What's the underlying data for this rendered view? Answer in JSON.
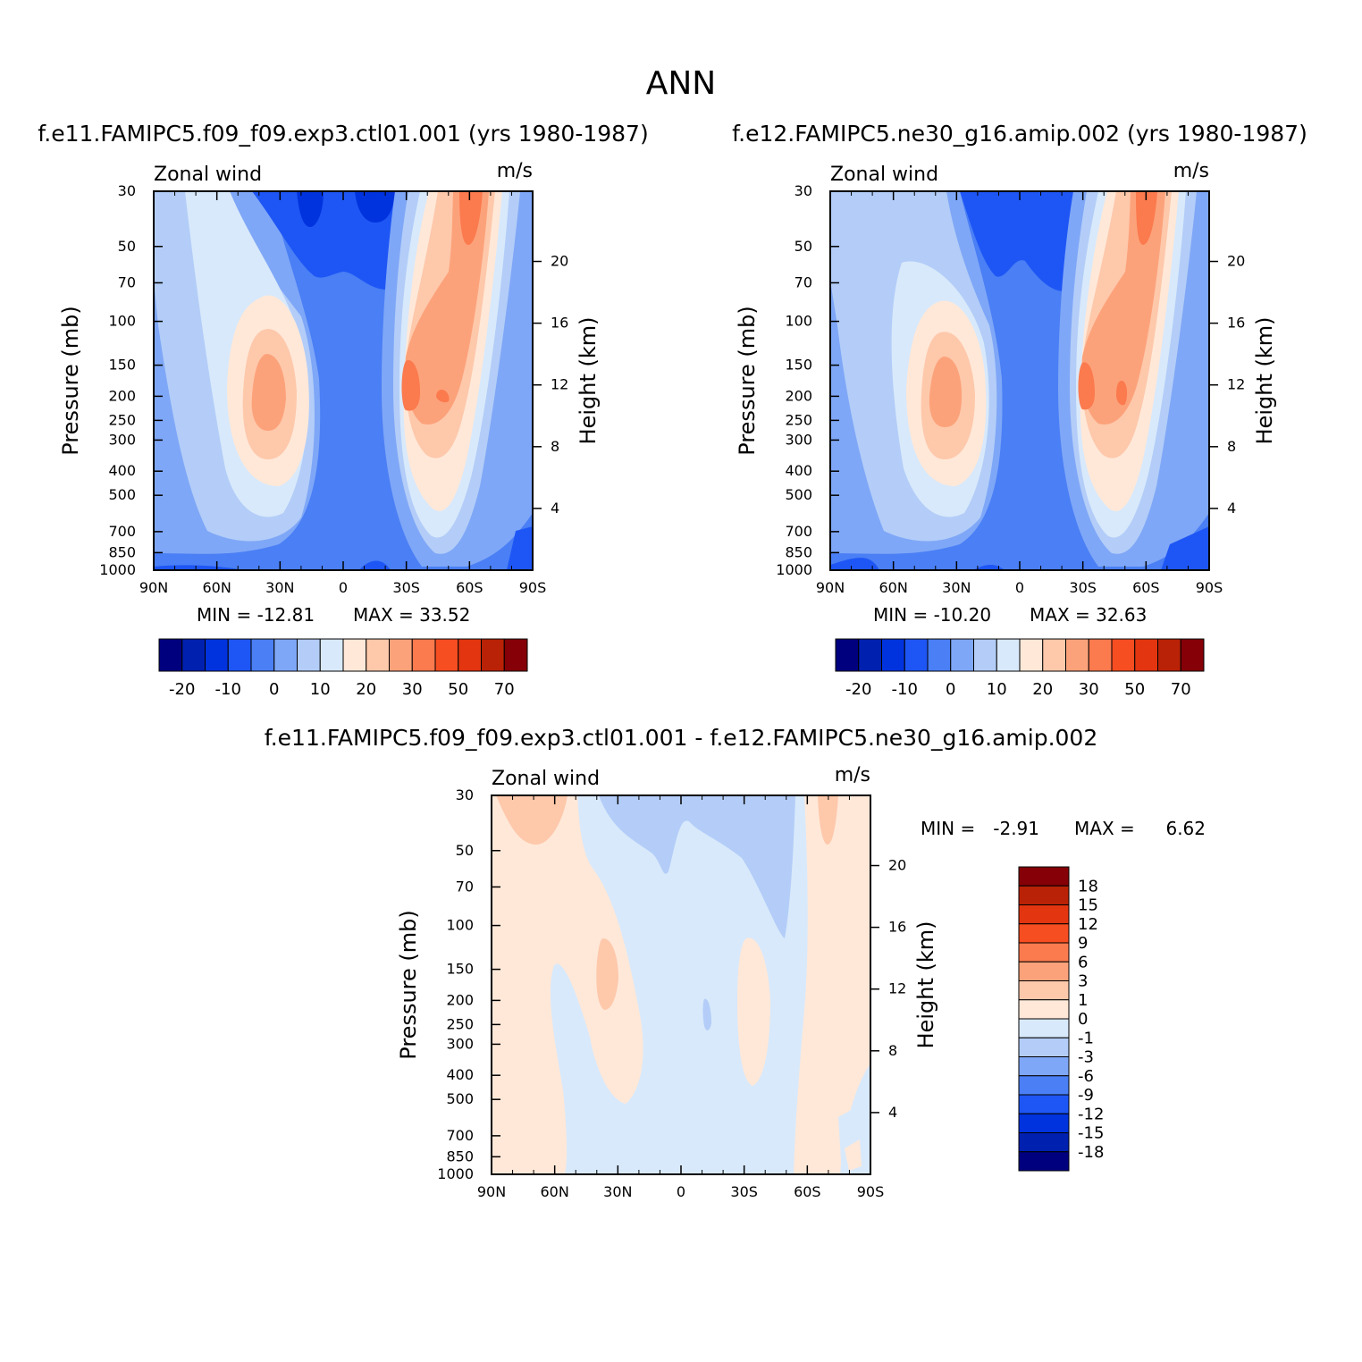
{
  "title": "ANN",
  "colors": {
    "scale": [
      "#00007f",
      "#0020b0",
      "#0033dd",
      "#1e56f5",
      "#4a7ff5",
      "#7fa7f7",
      "#b3cdf8",
      "#d8e9fb",
      "#ffe8d8",
      "#fec8ab",
      "#fca27a",
      "#fb7a4e",
      "#f64d21",
      "#e23510",
      "#b92206",
      "#850007"
    ]
  },
  "chart_data": [
    {
      "type": "contour",
      "title": "f.e11.FAMIPC5.f09_f09.exp3.ctl01.001 (yrs 1980-1987)",
      "variable_label": "Zonal wind",
      "units_label": "m/s",
      "ylabel": "Pressure (mb)",
      "y2label": "Height (km)",
      "x_ticks": [
        "90N",
        "60N",
        "30N",
        "0",
        "30S",
        "60S",
        "90S"
      ],
      "y_ticks": [
        "30",
        "50",
        "70",
        "100",
        "150",
        "200",
        "250",
        "300",
        "400",
        "500",
        "700",
        "850",
        "1000"
      ],
      "y2_ticks": [
        "20",
        "16",
        "12",
        "8",
        "4"
      ],
      "min_label": "MIN = -12.81",
      "max_label": "MAX = 33.52",
      "min": -12.81,
      "max": 33.52,
      "colorbar_labels": [
        "-20",
        "-10",
        "0",
        "10",
        "20",
        "30",
        "50",
        "70"
      ]
    },
    {
      "type": "contour",
      "title": "f.e12.FAMIPC5.ne30_g16.amip.002 (yrs 1980-1987)",
      "variable_label": "Zonal wind",
      "units_label": "m/s",
      "ylabel": "Pressure (mb)",
      "y2label": "Height (km)",
      "x_ticks": [
        "90N",
        "60N",
        "30N",
        "0",
        "30S",
        "60S",
        "90S"
      ],
      "y_ticks": [
        "30",
        "50",
        "70",
        "100",
        "150",
        "200",
        "250",
        "300",
        "400",
        "500",
        "700",
        "850",
        "1000"
      ],
      "y2_ticks": [
        "20",
        "16",
        "12",
        "8",
        "4"
      ],
      "min_label": "MIN = -10.20",
      "max_label": "MAX = 32.63",
      "min": -10.2,
      "max": 32.63,
      "colorbar_labels": [
        "-20",
        "-10",
        "0",
        "10",
        "20",
        "30",
        "50",
        "70"
      ]
    },
    {
      "type": "contour",
      "title": "f.e11.FAMIPC5.f09_f09.exp3.ctl01.001 - f.e12.FAMIPC5.ne30_g16.amip.002",
      "variable_label": "Zonal wind",
      "units_label": "m/s",
      "ylabel": "Pressure (mb)",
      "y2label": "Height (km)",
      "x_ticks": [
        "90N",
        "60N",
        "30N",
        "0",
        "30S",
        "60S",
        "90S"
      ],
      "y_ticks": [
        "30",
        "50",
        "70",
        "100",
        "150",
        "200",
        "250",
        "300",
        "400",
        "500",
        "700",
        "850",
        "1000"
      ],
      "y2_ticks": [
        "20",
        "16",
        "12",
        "8",
        "4"
      ],
      "min_text": "MIN =",
      "min_value": "-2.91",
      "max_text": "MAX =",
      "max_value": "6.62",
      "min": -2.91,
      "max": 6.62,
      "colorbar_labels": [
        "18",
        "15",
        "12",
        "9",
        "6",
        "3",
        "1",
        "0",
        "-1",
        "-3",
        "-6",
        "-9",
        "-12",
        "-15",
        "-18"
      ]
    }
  ]
}
